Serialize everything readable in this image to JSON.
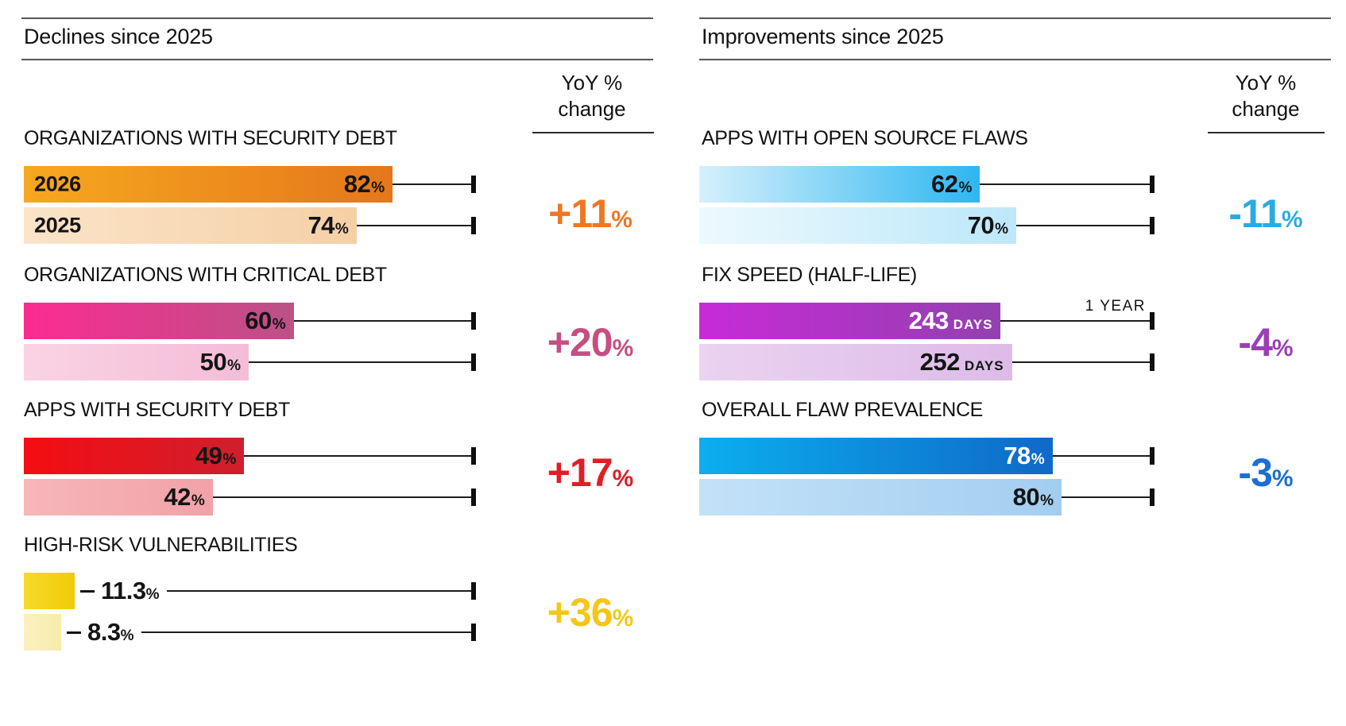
{
  "yoy_header": {
    "line1": "YoY %",
    "line2": "change"
  },
  "colors": {
    "orange": "#EE7723",
    "pink": "#C74E82",
    "red": "#DF1E25",
    "yellow": "#F6C618",
    "cyan": "#29ABE2",
    "purple": "#9C3FB4",
    "blue": "#1A6FD4",
    "rule_gray": "#55565A",
    "text": "#121212"
  },
  "chart_data": [
    {
      "type": "bar",
      "title": "Declines since 2025",
      "orientation": "horizontal",
      "legend_years": [
        "2026",
        "2025"
      ],
      "sections": [
        {
          "title": "ORGANIZATIONS WITH SECURITY DEBT",
          "axis_max": 100,
          "bars": [
            {
              "label": "2026",
              "value": 82,
              "display": "82",
              "unit": "%"
            },
            {
              "label": "2025",
              "value": 74,
              "display": "74",
              "unit": "%"
            }
          ],
          "yoy": {
            "display": "+11",
            "unit": "%",
            "color": "#EE7723"
          }
        },
        {
          "title": "ORGANIZATIONS WITH CRITICAL DEBT",
          "axis_max": 100,
          "bars": [
            {
              "value": 60,
              "display": "60",
              "unit": "%"
            },
            {
              "value": 50,
              "display": "50",
              "unit": "%"
            }
          ],
          "yoy": {
            "display": "+20",
            "unit": "%",
            "color": "#C74E82"
          }
        },
        {
          "title": "APPS WITH SECURITY DEBT",
          "axis_max": 100,
          "bars": [
            {
              "value": 49,
              "display": "49",
              "unit": "%"
            },
            {
              "value": 42,
              "display": "42",
              "unit": "%"
            }
          ],
          "yoy": {
            "display": "+17",
            "unit": "%",
            "color": "#DF1E25"
          }
        },
        {
          "title": "HIGH-RISK VULNERABILITIES",
          "axis_max": 100,
          "value_position": "outside",
          "bars": [
            {
              "value": 11.3,
              "display": "11.3",
              "unit": "%"
            },
            {
              "value": 8.3,
              "display": "8.3",
              "unit": "%"
            }
          ],
          "yoy": {
            "display": "+36",
            "unit": "%",
            "color": "#F6C618"
          }
        }
      ]
    },
    {
      "type": "bar",
      "title": "Improvements since 2025",
      "orientation": "horizontal",
      "sections": [
        {
          "title": "APPS WITH OPEN SOURCE FLAWS",
          "axis_max": 100,
          "bars": [
            {
              "value": 62,
              "display": "62",
              "unit": "%"
            },
            {
              "value": 70,
              "display": "70",
              "unit": "%"
            }
          ],
          "yoy": {
            "display": "-11",
            "unit": "%",
            "color": "#29ABE2"
          }
        },
        {
          "title": "FIX SPEED (HALF-LIFE)",
          "axis_max": 365,
          "axis_annotation": "1 YEAR",
          "bars": [
            {
              "value": 243,
              "display": "243",
              "unit": "DAYS"
            },
            {
              "value": 252,
              "display": "252",
              "unit": "DAYS"
            }
          ],
          "yoy": {
            "display": "-4",
            "unit": "%",
            "color": "#9C3FB4"
          }
        },
        {
          "title": "OVERALL FLAW PREVALENCE",
          "axis_max": 100,
          "bars": [
            {
              "value": 78,
              "display": "78",
              "unit": "%"
            },
            {
              "value": 80,
              "display": "80",
              "unit": "%"
            }
          ],
          "yoy": {
            "display": "-3",
            "unit": "%",
            "color": "#1A6FD4"
          }
        }
      ]
    }
  ]
}
